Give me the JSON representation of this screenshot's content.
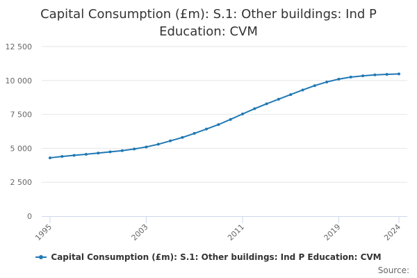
{
  "colors": {
    "series": "#1f78b4",
    "grid": "#e6e6e6",
    "axis_line": "#ccd6eb",
    "tick_text": "#666666"
  },
  "chart_data": {
    "type": "line",
    "title": "Capital Consumption (£m): S.1: Other buildings: Ind P Education: CVM",
    "xlabel": "",
    "ylabel": "",
    "xlim": [
      1995,
      2024
    ],
    "ylim": [
      0,
      12500
    ],
    "y_ticks": [
      0,
      2500,
      5000,
      7500,
      10000,
      12500
    ],
    "y_tick_labels": [
      "0",
      "2 500",
      "5 000",
      "7 500",
      "10 000",
      "12 500"
    ],
    "x_ticks": [
      1995,
      2003,
      2011,
      2019,
      2024
    ],
    "x_tick_labels": [
      "1995",
      "2003",
      "2011",
      "2019",
      "2024"
    ],
    "grid": true,
    "legend_position": "bottom",
    "series": [
      {
        "name": "Capital Consumption (£m): S.1: Other buildings: Ind P Education: CVM",
        "x": [
          1995,
          1996,
          1997,
          1998,
          1999,
          2000,
          2001,
          2002,
          2003,
          2004,
          2005,
          2006,
          2007,
          2008,
          2009,
          2010,
          2011,
          2012,
          2013,
          2014,
          2015,
          2016,
          2017,
          2018,
          2019,
          2020,
          2021,
          2022,
          2023,
          2024
        ],
        "values": [
          4300,
          4400,
          4480,
          4560,
          4650,
          4740,
          4830,
          4950,
          5100,
          5300,
          5550,
          5800,
          6100,
          6420,
          6750,
          7130,
          7530,
          7920,
          8280,
          8620,
          8960,
          9300,
          9620,
          9890,
          10100,
          10250,
          10340,
          10410,
          10450,
          10480
        ]
      }
    ]
  },
  "footer": {
    "source_label": "Source:"
  }
}
